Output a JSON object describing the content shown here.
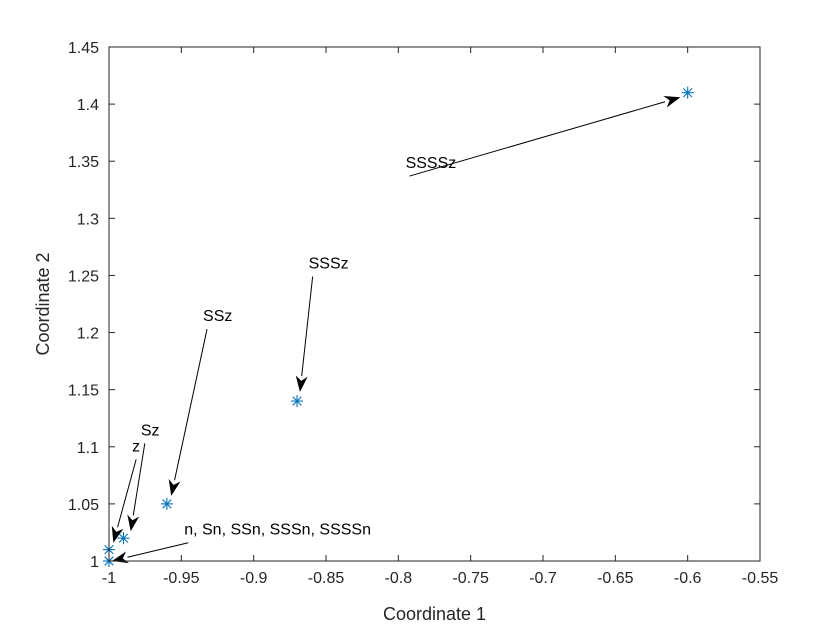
{
  "chart_data": {
    "type": "scatter",
    "xlabel": "Coordinate 1",
    "ylabel": "Coordinate 2",
    "xlim": [
      -1,
      -0.55
    ],
    "ylim": [
      1,
      1.45
    ],
    "xticks": [
      "-1",
      "-0.95",
      "-0.9",
      "-0.85",
      "-0.8",
      "-0.75",
      "-0.7",
      "-0.65",
      "-0.6",
      "-0.55"
    ],
    "yticks": [
      "1",
      "1.05",
      "1.1",
      "1.15",
      "1.2",
      "1.25",
      "1.3",
      "1.35",
      "1.4",
      "1.45"
    ],
    "grid": false,
    "marker": "asterisk",
    "marker_color": "#0072BD",
    "points": [
      {
        "x": -1.0,
        "y": 1.0
      },
      {
        "x": -1.0,
        "y": 1.01
      },
      {
        "x": -0.99,
        "y": 1.02
      },
      {
        "x": -0.96,
        "y": 1.05
      },
      {
        "x": -0.87,
        "y": 1.14
      },
      {
        "x": -0.6,
        "y": 1.41
      }
    ],
    "annotations": [
      {
        "text": "n, Sn, SSn, SSSn, SSSSn",
        "text_x": -0.948,
        "text_y": 1.023,
        "target_x": -0.998,
        "target_y": 1.0
      },
      {
        "text": "z",
        "text_x": -0.984,
        "text_y": 1.096,
        "target_x": -0.997,
        "target_y": 1.016
      },
      {
        "text": "Sz",
        "text_x": -0.978,
        "text_y": 1.11,
        "target_x": -0.985,
        "target_y": 1.026
      },
      {
        "text": "SSz",
        "text_x": -0.935,
        "text_y": 1.21,
        "target_x": -0.957,
        "target_y": 1.057
      },
      {
        "text": "SSSz",
        "text_x": -0.862,
        "text_y": 1.256,
        "target_x": -0.868,
        "target_y": 1.148
      },
      {
        "text": "SSSSz",
        "text_x": -0.795,
        "text_y": 1.344,
        "target_x": -0.605,
        "target_y": 1.406
      }
    ]
  }
}
